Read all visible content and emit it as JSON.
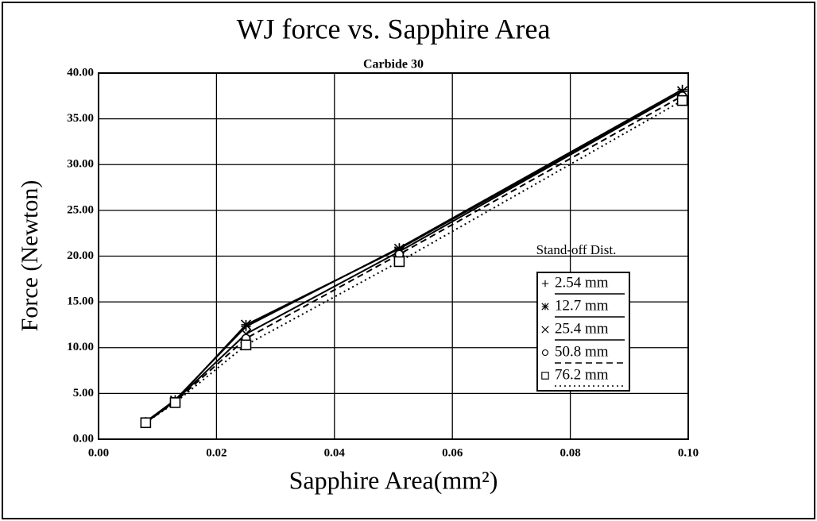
{
  "chart_data": {
    "type": "line",
    "title": "WJ force vs. Sapphire Area",
    "subtitle": "Carbide 30",
    "x_label": "Sapphire Area(mm²)",
    "y_label": "Force (Newton)",
    "legend_title": "Stand-off Dist.",
    "legend_position": "right",
    "grid": true,
    "x": [
      0.008,
      0.013,
      0.025,
      0.051,
      0.099
    ],
    "series": [
      {
        "name": "2.54 mm",
        "color": "#000000",
        "marker": "plus",
        "dash": "solid",
        "values": [
          1.9,
          4.3,
          12.3,
          20.9,
          38.2
        ]
      },
      {
        "name": "12.7 mm",
        "color": "#000000",
        "marker": "star",
        "dash": "solid",
        "values": [
          1.8,
          4.2,
          12.5,
          20.8,
          38.0
        ]
      },
      {
        "name": "25.4 mm",
        "color": "#000000",
        "marker": "cross",
        "dash": "solid",
        "values": [
          1.8,
          4.2,
          11.5,
          20.5,
          38.0
        ]
      },
      {
        "name": "50.8 mm",
        "color": "#000000",
        "marker": "circle",
        "dash": "dash",
        "values": [
          1.8,
          4.1,
          11.0,
          20.2,
          37.5
        ]
      },
      {
        "name": "76.2 mm",
        "color": "#000000",
        "marker": "square",
        "dash": "dot",
        "values": [
          1.8,
          4.0,
          10.3,
          19.4,
          37.0
        ]
      }
    ],
    "xlim": [
      0,
      0.1
    ],
    "xticks": [
      {
        "value": 0,
        "label": "0.00"
      },
      {
        "value": 0.02,
        "label": "0.02"
      },
      {
        "value": 0.04,
        "label": "0.04"
      },
      {
        "value": 0.06,
        "label": "0.06"
      },
      {
        "value": 0.08,
        "label": "0.08"
      },
      {
        "value": 0.1,
        "label": "0.10"
      }
    ],
    "ylim": [
      0,
      40
    ],
    "yticks": [
      {
        "value": 0,
        "label": "0.00"
      },
      {
        "value": 5,
        "label": "5.00"
      },
      {
        "value": 10,
        "label": "10.00"
      },
      {
        "value": 15,
        "label": "15.00"
      },
      {
        "value": 20,
        "label": "20.00"
      },
      {
        "value": 25,
        "label": "25.00"
      },
      {
        "value": 30,
        "label": "30.00"
      },
      {
        "value": 35,
        "label": "35.00"
      },
      {
        "value": 40,
        "label": "40.00"
      }
    ]
  }
}
